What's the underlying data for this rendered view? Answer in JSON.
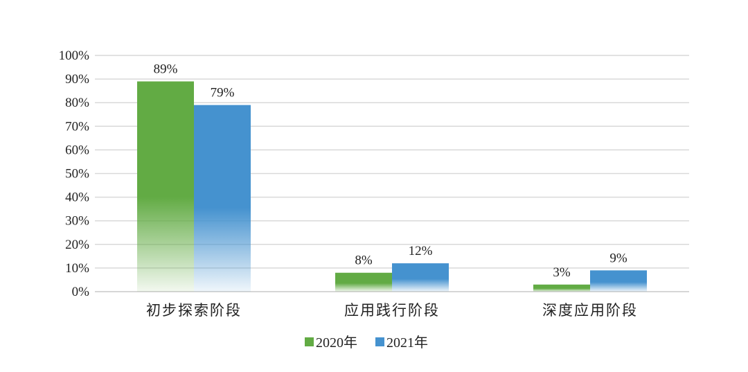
{
  "chart_data": {
    "type": "bar",
    "categories": [
      "初步探索阶段",
      "应用践行阶段",
      "深度应用阶段"
    ],
    "series": [
      {
        "name": "2020年",
        "values": [
          89,
          8,
          3
        ],
        "labels": [
          "89%",
          "8%",
          "3%"
        ],
        "color": "#62ab44"
      },
      {
        "name": "2021年",
        "values": [
          79,
          12,
          9
        ],
        "labels": [
          "79%",
          "12%",
          "9%"
        ],
        "color": "#4592cf"
      }
    ],
    "y_ticks": [
      "0%",
      "10%",
      "20%",
      "30%",
      "40%",
      "50%",
      "60%",
      "70%",
      "80%",
      "90%",
      "100%"
    ],
    "ylim": [
      0,
      100
    ],
    "grid": true,
    "legend_position": "bottom-center",
    "title": "",
    "xlabel": "",
    "ylabel": ""
  }
}
